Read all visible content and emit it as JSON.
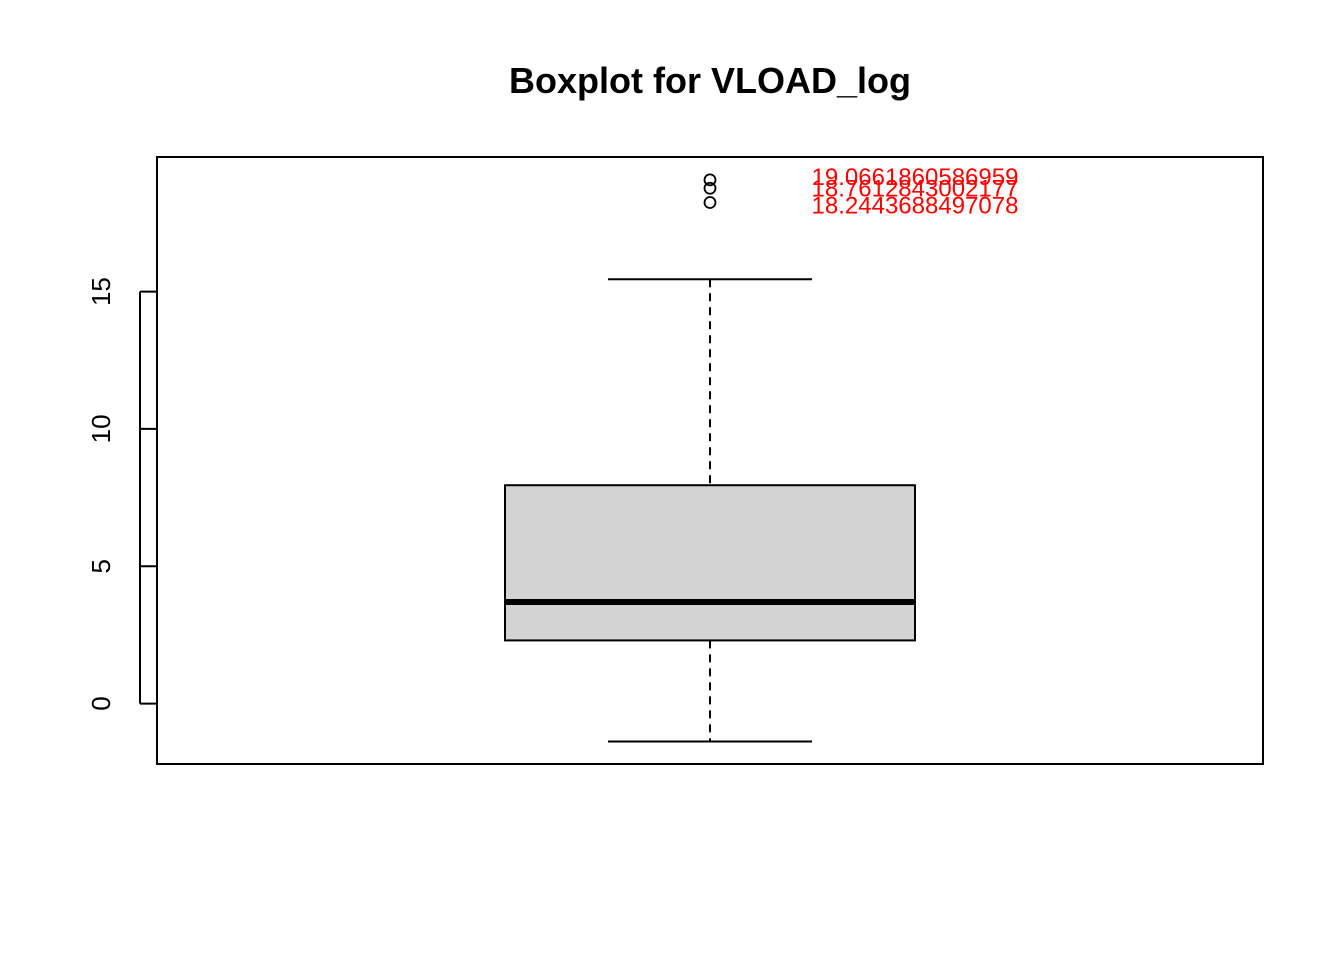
{
  "chart_data": {
    "type": "boxplot",
    "title": "Boxplot for VLOAD_log",
    "xlabel": "",
    "ylabel": "",
    "ylim": [
      -2.2,
      19.9
    ],
    "y_ticks": [
      0,
      5,
      10,
      15
    ],
    "y_tick_labels": [
      "0",
      "5",
      "10",
      "15"
    ],
    "box": {
      "whisker_low": -1.38,
      "q1": 2.3,
      "median": 3.7,
      "q3": 7.95,
      "whisker_high": 15.45
    },
    "outliers": [
      19.0661860586959,
      18.7612843002177,
      18.2443688497078
    ],
    "outlier_labels": [
      "19.0661860586959",
      "18.7612843002177",
      "18.2443688497078"
    ],
    "label_color": "#ff0000",
    "box_fill": "#d3d3d3"
  }
}
